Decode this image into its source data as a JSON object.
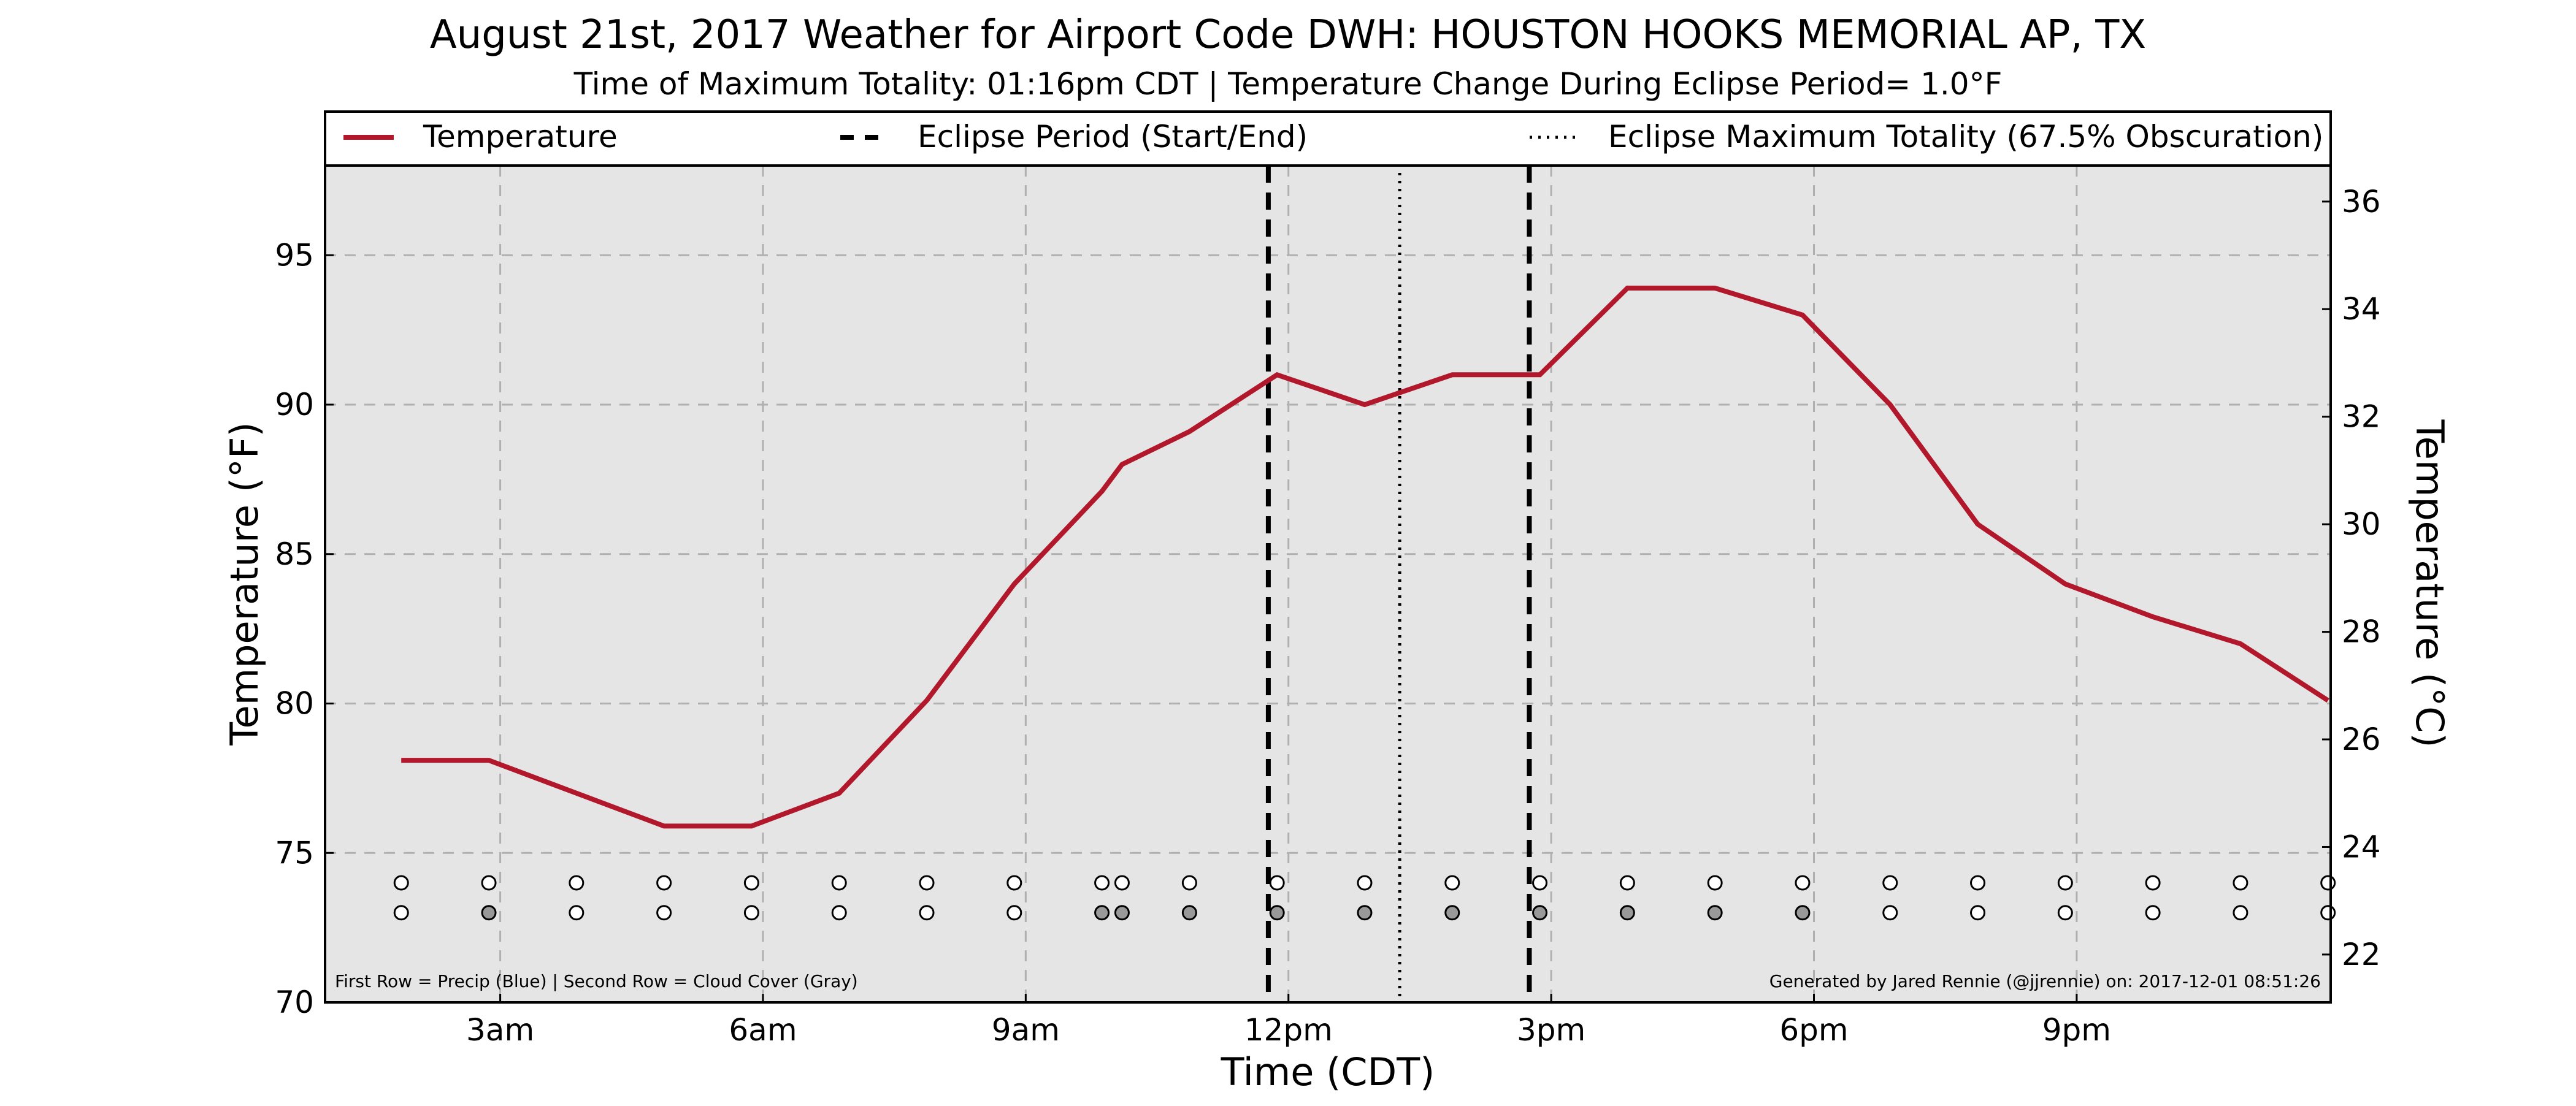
{
  "chart_data": {
    "type": "line",
    "title": "August 21st, 2017 Weather for Airport Code DWH: HOUSTON HOOKS MEMORIAL AP, TX",
    "subtitle": "Time of Maximum Totality: 01:16pm CDT | Temperature Change During Eclipse Period= 1.0°F",
    "xlabel": "Time (CDT)",
    "ylabel": "Temperature (°F)",
    "ylabel_right": "Temperature (°C)",
    "x_ticks": [
      {
        "hour": 3,
        "label": "3am"
      },
      {
        "hour": 6,
        "label": "6am"
      },
      {
        "hour": 9,
        "label": "9am"
      },
      {
        "hour": 12,
        "label": "12pm"
      },
      {
        "hour": 15,
        "label": "3pm"
      },
      {
        "hour": 18,
        "label": "6pm"
      },
      {
        "hour": 21,
        "label": "9pm"
      }
    ],
    "xlim_hours": [
      1.0,
      23.9
    ],
    "ylim": [
      70,
      98
    ],
    "yticks": [
      70,
      75,
      80,
      85,
      90,
      95
    ],
    "y2lim_c": [
      21.11,
      36.67
    ],
    "y2ticks": [
      22,
      24,
      26,
      28,
      30,
      32,
      34,
      36
    ],
    "grid": true,
    "legend_placement": "top",
    "series": [
      {
        "name": "Temperature",
        "color": "#b2182b",
        "style": "solid",
        "points": [
          {
            "hour": 1.87,
            "temp_f": 78.1
          },
          {
            "hour": 2.87,
            "temp_f": 78.1
          },
          {
            "hour": 3.87,
            "temp_f": 77.0
          },
          {
            "hour": 4.87,
            "temp_f": 75.9
          },
          {
            "hour": 5.87,
            "temp_f": 75.9
          },
          {
            "hour": 6.87,
            "temp_f": 77.0
          },
          {
            "hour": 7.87,
            "temp_f": 80.1
          },
          {
            "hour": 8.87,
            "temp_f": 84.0
          },
          {
            "hour": 9.87,
            "temp_f": 87.1
          },
          {
            "hour": 10.1,
            "temp_f": 88.0
          },
          {
            "hour": 10.87,
            "temp_f": 89.1
          },
          {
            "hour": 11.87,
            "temp_f": 91.0
          },
          {
            "hour": 12.87,
            "temp_f": 90.0
          },
          {
            "hour": 13.87,
            "temp_f": 91.0
          },
          {
            "hour": 14.87,
            "temp_f": 91.0
          },
          {
            "hour": 15.87,
            "temp_f": 93.9
          },
          {
            "hour": 16.87,
            "temp_f": 93.9
          },
          {
            "hour": 17.87,
            "temp_f": 93.0
          },
          {
            "hour": 18.87,
            "temp_f": 90.0
          },
          {
            "hour": 19.87,
            "temp_f": 86.0
          },
          {
            "hour": 20.87,
            "temp_f": 84.0
          },
          {
            "hour": 21.87,
            "temp_f": 82.9
          },
          {
            "hour": 22.87,
            "temp_f": 82.0
          },
          {
            "hour": 23.87,
            "temp_f": 80.1
          }
        ]
      }
    ],
    "eclipse": {
      "start_hour": 11.77,
      "max_hour": 13.27,
      "end_hour": 14.75,
      "start_end_label": "Eclipse Period (Start/End)",
      "max_label": "Eclipse Maximum Totality (67.5% Obscuration)",
      "colors": {
        "line": "#000000"
      }
    },
    "observations": {
      "precip_row_temp_f": 74.0,
      "cloud_row_temp_f": 73.0,
      "precip_color": "#ffffff",
      "cloud_clear_color": "#ffffff",
      "cloud_cover_color": "#999999",
      "items": [
        {
          "hour": 1.87,
          "cloudy": false
        },
        {
          "hour": 2.87,
          "cloudy": true
        },
        {
          "hour": 3.87,
          "cloudy": false
        },
        {
          "hour": 4.87,
          "cloudy": false
        },
        {
          "hour": 5.87,
          "cloudy": false
        },
        {
          "hour": 6.87,
          "cloudy": false
        },
        {
          "hour": 7.87,
          "cloudy": false
        },
        {
          "hour": 8.87,
          "cloudy": false
        },
        {
          "hour": 9.87,
          "cloudy": true
        },
        {
          "hour": 10.1,
          "cloudy": true
        },
        {
          "hour": 10.87,
          "cloudy": true
        },
        {
          "hour": 11.87,
          "cloudy": true
        },
        {
          "hour": 12.87,
          "cloudy": true
        },
        {
          "hour": 13.87,
          "cloudy": true
        },
        {
          "hour": 14.87,
          "cloudy": true
        },
        {
          "hour": 15.87,
          "cloudy": true
        },
        {
          "hour": 16.87,
          "cloudy": true
        },
        {
          "hour": 17.87,
          "cloudy": true
        },
        {
          "hour": 18.87,
          "cloudy": false
        },
        {
          "hour": 19.87,
          "cloudy": false
        },
        {
          "hour": 20.87,
          "cloudy": false
        },
        {
          "hour": 21.87,
          "cloudy": false
        },
        {
          "hour": 22.87,
          "cloudy": false
        },
        {
          "hour": 23.87,
          "cloudy": false
        }
      ]
    },
    "legend": {
      "temperature": "Temperature",
      "eclipse_period": "Eclipse Period (Start/End)",
      "eclipse_max": "Eclipse Maximum Totality (67.5% Obscuration)"
    },
    "annotations": {
      "rows_note": "First Row = Precip (Blue) | Second Row = Cloud Cover (Gray)",
      "generated_by": "Generated by Jared Rennie (@jjrennie) on: 2017-12-01 08:51:26"
    },
    "colors": {
      "plot_background": "#e5e5e5",
      "grid": "#b0b0b0",
      "temperature": "#b2182b"
    }
  }
}
